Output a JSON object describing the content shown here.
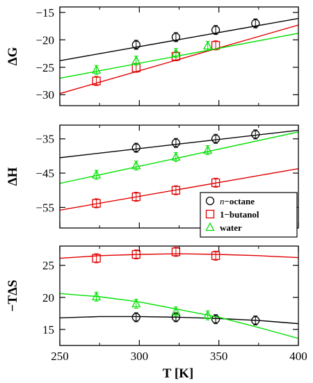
{
  "chart_data": {
    "type": "scatter",
    "x_ticks": [
      250,
      300,
      350,
      400
    ],
    "x_tick_labels": [
      "250",
      "300",
      "350",
      "400"
    ],
    "xlabel": "T [K]",
    "xlim": [
      250,
      400
    ],
    "legend": {
      "placement": "lower-right of middle panel",
      "entries": [
        {
          "marker": "circle",
          "color": "#000000",
          "prefix": "n",
          "suffix": "−octane"
        },
        {
          "marker": "square",
          "color": "#e00000",
          "label": "1−butanol"
        },
        {
          "marker": "triangle",
          "color": "#00e000",
          "label": "water"
        }
      ]
    },
    "panels": [
      {
        "ylabel": "ΔG",
        "ylim": [
          -32,
          -14
        ],
        "y_ticks": [
          -15,
          -20,
          -25,
          -30
        ],
        "y_tick_labels": [
          "−15",
          "−20",
          "−25",
          "−30"
        ],
        "series": [
          {
            "color": "#000000",
            "marker": "circle",
            "x": [
              298,
              323,
              348,
              373
            ],
            "y": [
              -20.9,
              -19.5,
              -18.2,
              -17.0
            ],
            "fit": {
              "x": [
                250,
                400
              ],
              "y": [
                -23.8,
                -16.1
              ]
            }
          },
          {
            "color": "#e00000",
            "marker": "square",
            "x": [
              273,
              298,
              323,
              348
            ],
            "y": [
              -27.5,
              -25.1,
              -23.0,
              -21.0
            ],
            "fit": {
              "x": [
                250,
                400
              ],
              "y": [
                -29.8,
                -17.3
              ]
            }
          },
          {
            "color": "#00e000",
            "marker": "triangle",
            "x": [
              273,
              298,
              323,
              343
            ],
            "y": [
              -25.5,
              -23.8,
              -22.4,
              -21.1
            ],
            "fit": {
              "x": [
                250,
                400
              ],
              "y": [
                -27.0,
                -18.8
              ]
            }
          }
        ]
      },
      {
        "ylabel": "ΔH",
        "ylim": [
          -61,
          -31
        ],
        "y_ticks": [
          -35,
          -45,
          -55
        ],
        "y_tick_labels": [
          "−35",
          "−45",
          "−55"
        ],
        "series": [
          {
            "color": "#000000",
            "marker": "circle",
            "x": [
              298,
              323,
              348,
              373
            ],
            "y": [
              -37.6,
              -36.2,
              -35.0,
              -33.7
            ],
            "fit": {
              "x": [
                250,
                400
              ],
              "y": [
                -40.5,
                -32.5
              ]
            }
          },
          {
            "color": "#e00000",
            "marker": "square",
            "x": [
              273,
              298,
              323,
              348
            ],
            "y": [
              -53.8,
              -51.9,
              -50.0,
              -47.8
            ],
            "fit": {
              "x": [
                250,
                400
              ],
              "y": [
                -55.8,
                -43.7
              ]
            }
          },
          {
            "color": "#00e000",
            "marker": "triangle",
            "x": [
              273,
              298,
              323,
              343
            ],
            "y": [
              -45.5,
              -42.8,
              -40.3,
              -38.3
            ],
            "fit": {
              "x": [
                250,
                400
              ],
              "y": [
                -48.0,
                -33.0
              ]
            }
          }
        ]
      },
      {
        "ylabel": "−TΔS",
        "ylim": [
          12.5,
          28
        ],
        "y_ticks": [
          25,
          20,
          15
        ],
        "y_tick_labels": [
          "25",
          "20",
          "15"
        ],
        "series": [
          {
            "color": "#000000",
            "marker": "circle",
            "x": [
              298,
              323,
              348,
              373
            ],
            "y": [
              16.9,
              16.9,
              16.6,
              16.4
            ],
            "fit": {
              "x": [
                250,
                275,
                300,
                325,
                350,
                375,
                400
              ],
              "y": [
                16.8,
                17.0,
                17.0,
                16.9,
                16.7,
                16.4,
                15.9
              ]
            }
          },
          {
            "color": "#e00000",
            "marker": "square",
            "x": [
              273,
              298,
              323,
              348
            ],
            "y": [
              26.1,
              26.7,
              27.1,
              26.5
            ],
            "fit": {
              "x": [
                250,
                275,
                300,
                325,
                350,
                375,
                400
              ],
              "y": [
                26.1,
                26.5,
                26.7,
                26.8,
                26.7,
                26.5,
                26.2
              ]
            }
          },
          {
            "color": "#00e000",
            "marker": "triangle",
            "x": [
              273,
              298,
              323,
              343
            ],
            "y": [
              20.1,
              19.0,
              17.8,
              17.2
            ],
            "fit": {
              "x": [
                250,
                275,
                300,
                325,
                350,
                375,
                400
              ],
              "y": [
                20.6,
                20.1,
                19.3,
                18.1,
                16.9,
                15.3,
                13.6
              ]
            }
          }
        ]
      }
    ]
  }
}
